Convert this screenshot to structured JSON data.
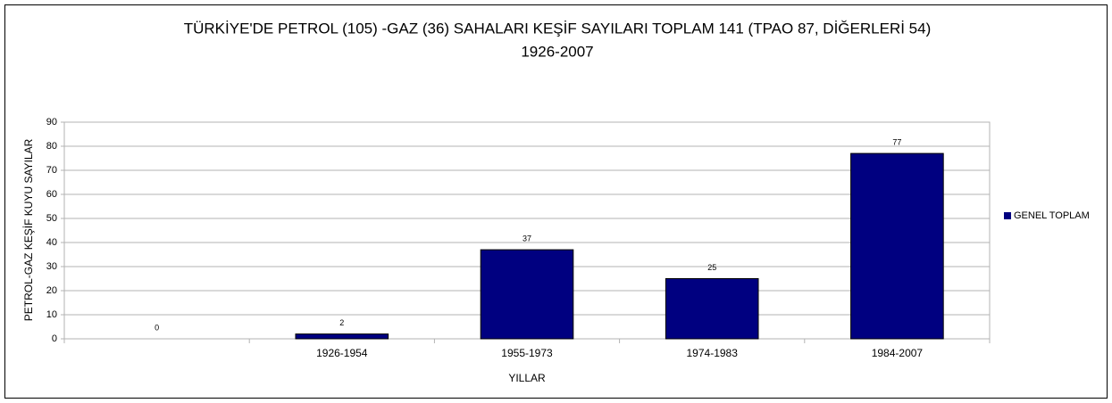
{
  "chart_data": {
    "type": "bar",
    "title": "TÜRKİYE'DE PETROL (105) -GAZ (36) SAHALARI KEŞİF SAYILARI TOPLAM 141 (TPAO 87, DİĞERLERİ 54)",
    "subtitle": "1926-2007",
    "x_label": "YILLAR",
    "y_label": "PETROL-GAZ KEŞİF KUYU SAYILAR",
    "categories": [
      null,
      "1926-1954",
      "1955-1973",
      "1974-1983",
      "1984-2007"
    ],
    "series": [
      {
        "name": "GENEL TOPLAM",
        "color": "#000080",
        "values": [
          0,
          2,
          37,
          25,
          77
        ]
      }
    ],
    "ylim": [
      0,
      90
    ],
    "yticks": [
      0,
      10,
      20,
      30,
      40,
      50,
      60,
      70,
      80,
      90
    ],
    "grid": true,
    "legend": "right"
  }
}
